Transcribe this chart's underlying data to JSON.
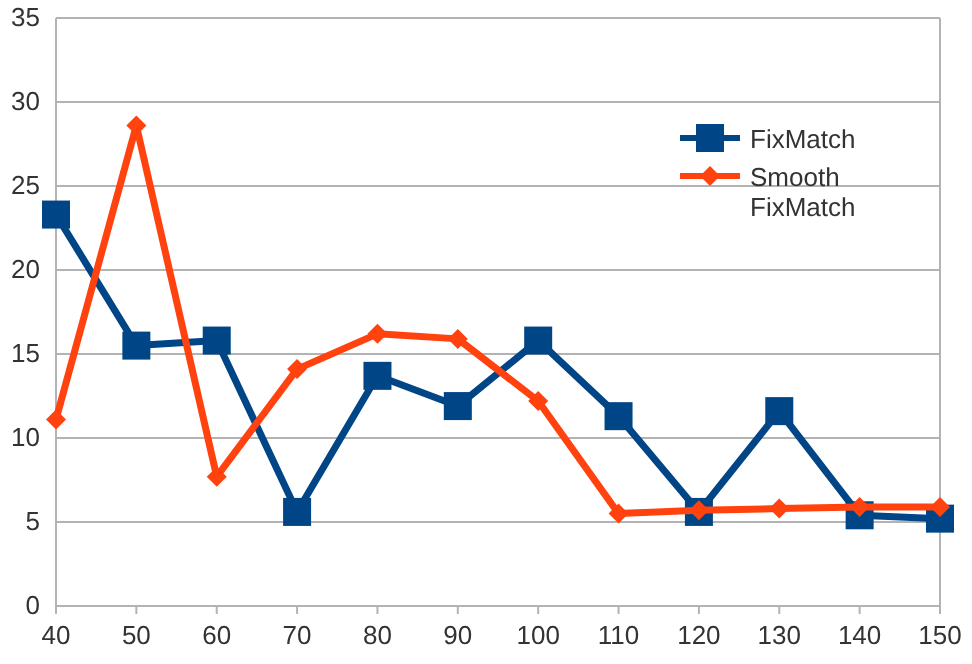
{
  "chart_data": {
    "type": "line",
    "x": [
      40,
      50,
      60,
      70,
      80,
      90,
      100,
      110,
      120,
      130,
      140,
      150
    ],
    "xlim": [
      40,
      150
    ],
    "xticks": [
      40,
      50,
      60,
      70,
      80,
      90,
      100,
      110,
      120,
      130,
      140,
      150
    ],
    "ylim": [
      0,
      35
    ],
    "yticks": [
      0,
      5,
      10,
      15,
      20,
      25,
      30,
      35
    ],
    "grid": "y",
    "legend": "top right",
    "series": [
      {
        "name": "FixMatch",
        "color": "#004586",
        "marker": "square",
        "values": [
          23.3,
          15.5,
          15.8,
          5.6,
          13.7,
          11.9,
          15.8,
          11.3,
          5.6,
          11.6,
          5.4,
          5.2
        ]
      },
      {
        "name": "Smooth FixMatch",
        "color": "#ff420e",
        "marker": "diamond",
        "values": [
          11.1,
          28.6,
          7.7,
          14.1,
          16.2,
          15.9,
          12.2,
          5.5,
          5.7,
          5.8,
          5.9,
          5.9
        ]
      }
    ]
  }
}
